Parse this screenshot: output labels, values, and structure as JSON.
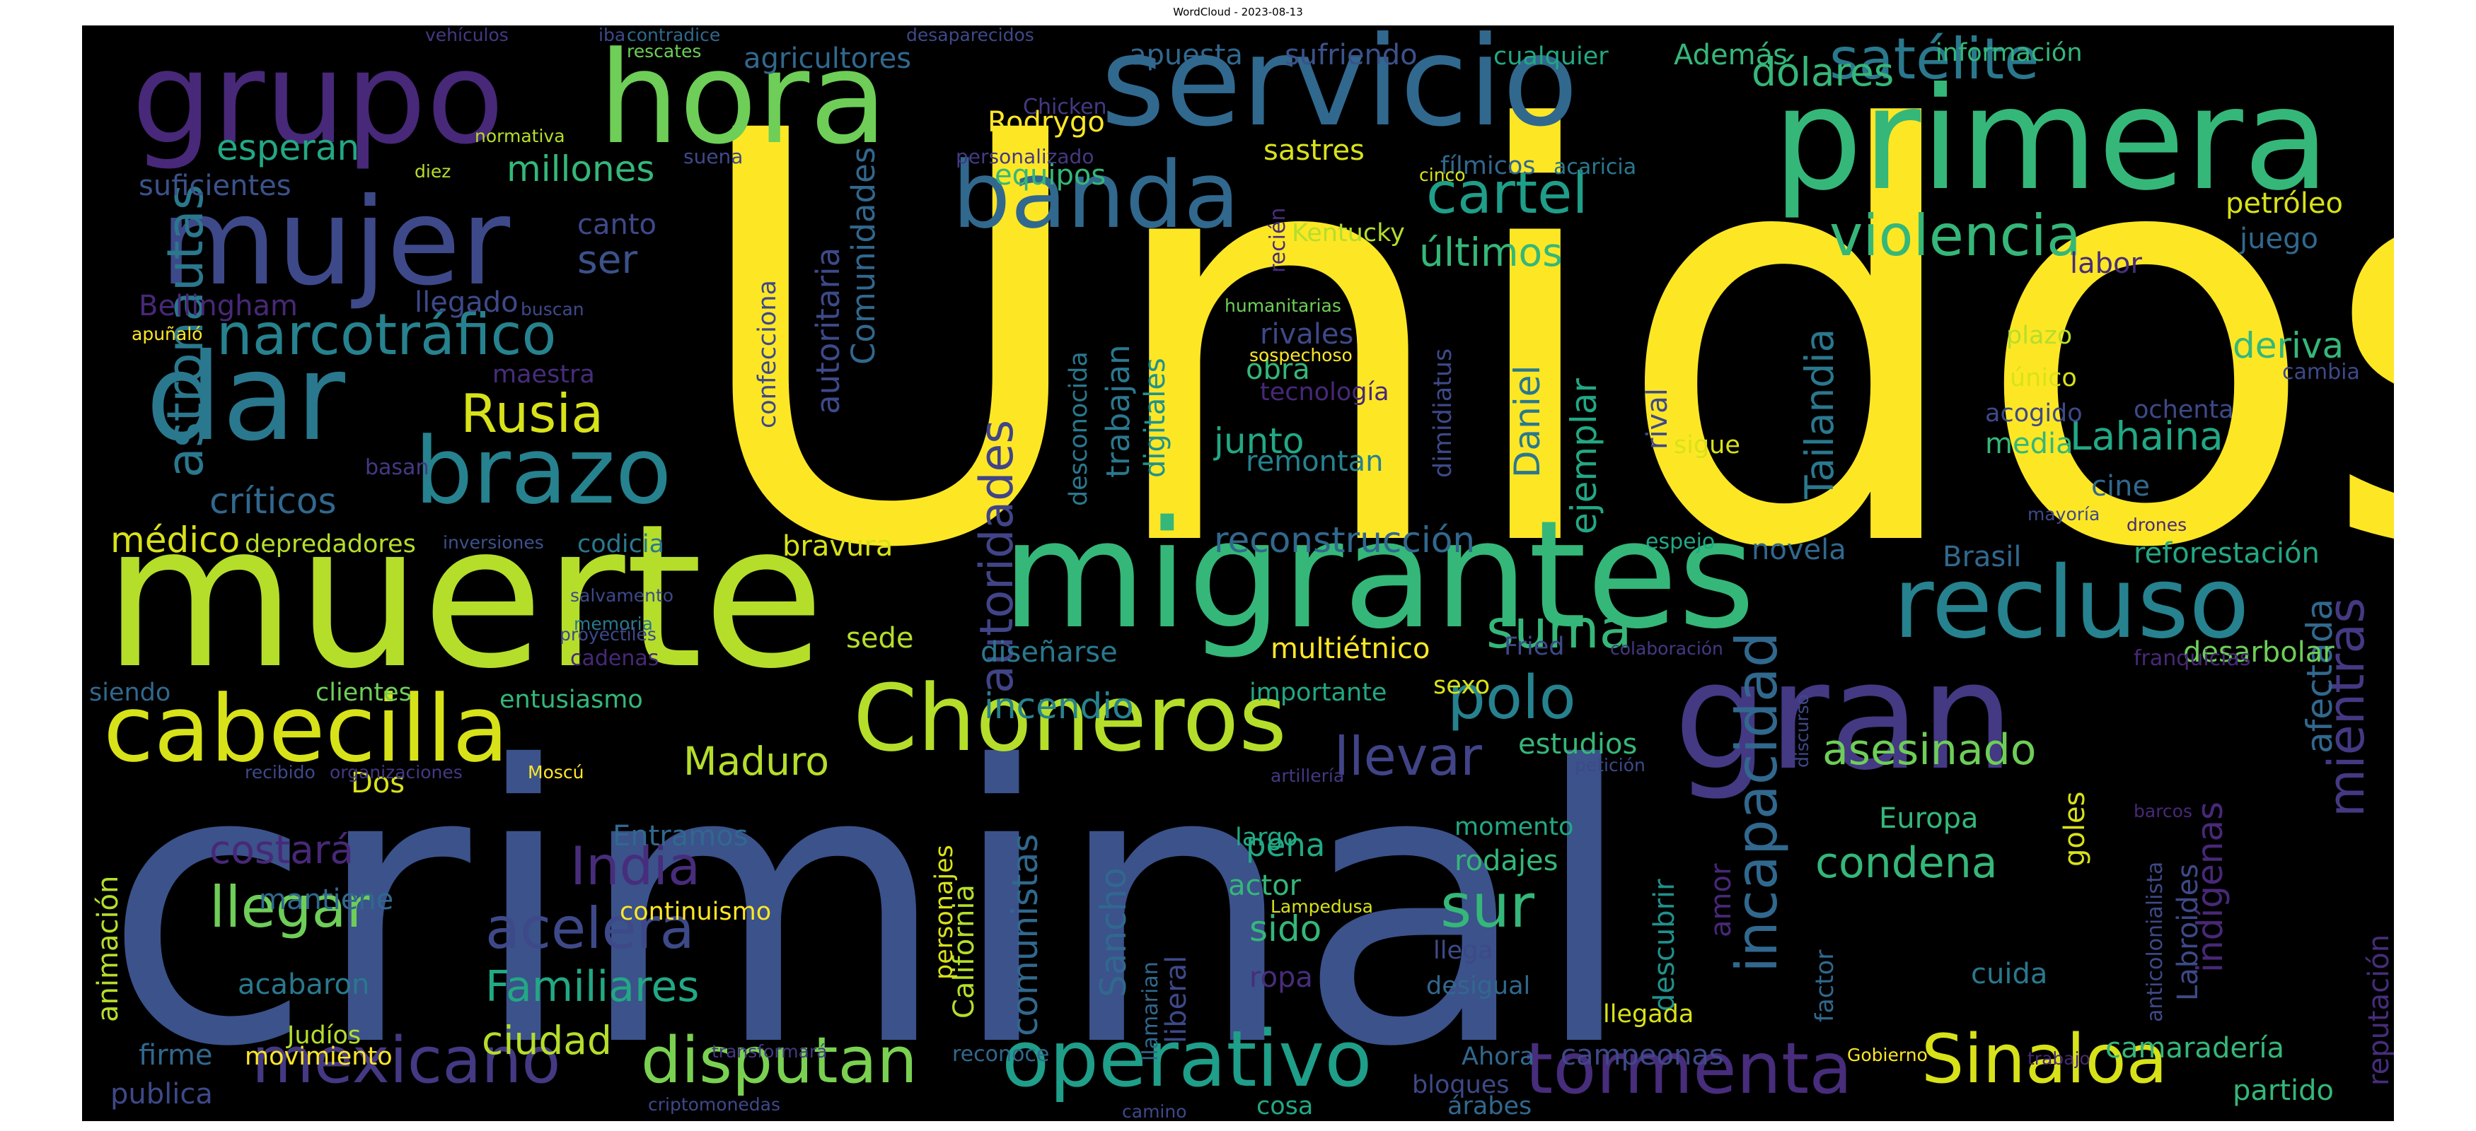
{
  "title": "WordCloud - 2023-08-13",
  "background": "#000000",
  "words": [
    {
      "text": "Unidos",
      "color": "#fde725"
    },
    {
      "text": "criminal",
      "color": "#3b528b"
    },
    {
      "text": "muerte",
      "color": "#b5de2b"
    },
    {
      "text": "migrantes",
      "color": "#35b779"
    },
    {
      "text": "grupo",
      "color": "#482878"
    },
    {
      "text": "hora",
      "color": "#6ece58"
    },
    {
      "text": "servicio",
      "color": "#31688e"
    },
    {
      "text": "primera",
      "color": "#35b779"
    },
    {
      "text": "gran",
      "color": "#443983"
    },
    {
      "text": "mujer",
      "color": "#3e4989"
    },
    {
      "text": "dar",
      "color": "#2a788e"
    },
    {
      "text": "banda",
      "color": "#31688e"
    },
    {
      "text": "brazo",
      "color": "#26828e"
    },
    {
      "text": "cabecilla",
      "color": "#d8e219"
    },
    {
      "text": "Choneros",
      "color": "#b5de2b"
    },
    {
      "text": "recluso",
      "color": "#26828e"
    },
    {
      "text": "tormenta",
      "color": "#472d7b"
    },
    {
      "text": "Sinaloa",
      "color": "#d8e219"
    },
    {
      "text": "operativo",
      "color": "#1f9e89"
    },
    {
      "text": "disputan",
      "color": "#7ad151"
    },
    {
      "text": "mexicano",
      "color": "#443983"
    },
    {
      "text": "violencia",
      "color": "#35b779"
    },
    {
      "text": "satélite",
      "color": "#2a788e"
    },
    {
      "text": "cartel",
      "color": "#1f9e89"
    },
    {
      "text": "narcotráfico",
      "color": "#26828e"
    },
    {
      "text": "astronautas",
      "color": "#2a788e"
    },
    {
      "text": "Rusia",
      "color": "#d8e219"
    },
    {
      "text": "India",
      "color": "#472d7b"
    },
    {
      "text": "acelera",
      "color": "#3e4989"
    },
    {
      "text": "llegar",
      "color": "#6ece58"
    },
    {
      "text": "polo",
      "color": "#26828e"
    },
    {
      "text": "sur",
      "color": "#35b779"
    },
    {
      "text": "llevar",
      "color": "#414487"
    },
    {
      "text": "incapacidad",
      "color": "#31688e"
    },
    {
      "text": "mientras",
      "color": "#443983"
    },
    {
      "text": "autoridades",
      "color": "#414487"
    },
    {
      "text": "suma",
      "color": "#35b779"
    },
    {
      "text": "asesinado",
      "color": "#6ece58"
    },
    {
      "text": "condena",
      "color": "#35b779"
    },
    {
      "text": "Familiares",
      "color": "#22a884"
    },
    {
      "text": "ciudad",
      "color": "#b5de2b"
    },
    {
      "text": "Maduro",
      "color": "#b5de2b"
    },
    {
      "text": "costará",
      "color": "#482878"
    },
    {
      "text": "dólares",
      "color": "#35b779"
    },
    {
      "text": "Lahaina",
      "color": "#22a884"
    },
    {
      "text": "Tailandia",
      "color": "#2a788e"
    },
    {
      "text": "últimos",
      "color": "#35b779"
    },
    {
      "text": "esperan",
      "color": "#22a884"
    },
    {
      "text": "millones",
      "color": "#35b779"
    },
    {
      "text": "ser",
      "color": "#3b528b"
    },
    {
      "text": "críticos",
      "color": "#31688e"
    },
    {
      "text": "médico",
      "color": "#d8e219"
    },
    {
      "text": "reconstrucción",
      "color": "#31688e"
    },
    {
      "text": "junto",
      "color": "#22a884"
    },
    {
      "text": "Daniel",
      "color": "#2a788e"
    },
    {
      "text": "ejemplar",
      "color": "#22a884"
    },
    {
      "text": "incendio",
      "color": "#26828e"
    },
    {
      "text": "comunistas",
      "color": "#31688e"
    },
    {
      "text": "Sancho",
      "color": "#31688e"
    },
    {
      "text": "deriva",
      "color": "#35b779"
    },
    {
      "text": "indígenas",
      "color": "#482878"
    },
    {
      "text": "afectada",
      "color": "#31688e"
    },
    {
      "text": "reforestación",
      "color": "#22a884"
    },
    {
      "text": "desarbolar",
      "color": "#6ece58"
    },
    {
      "text": "Brasil",
      "color": "#31688e"
    },
    {
      "text": "estudios",
      "color": "#35b779"
    },
    {
      "text": "novela",
      "color": "#31688e"
    },
    {
      "text": "pena",
      "color": "#22a884"
    },
    {
      "text": "sido",
      "color": "#35b779"
    },
    {
      "text": "rodajes",
      "color": "#35b779"
    },
    {
      "text": "descubrir",
      "color": "#21918c"
    },
    {
      "text": "Europa",
      "color": "#35b779"
    },
    {
      "text": "campeonas",
      "color": "#3e4989"
    },
    {
      "text": "cuida",
      "color": "#2a788e"
    },
    {
      "text": "camaradería",
      "color": "#35b779"
    },
    {
      "text": "partido",
      "color": "#35b779"
    },
    {
      "text": "goles",
      "color": "#d8e219"
    },
    {
      "text": "Labroides",
      "color": "#3e4989"
    },
    {
      "text": "reputación",
      "color": "#472d7b"
    },
    {
      "text": "autoritaria",
      "color": "#3e4989"
    },
    {
      "text": "Comunidades",
      "color": "#31688e"
    },
    {
      "text": "trabajan",
      "color": "#2a788e"
    },
    {
      "text": "digitales",
      "color": "#21918c"
    },
    {
      "text": "desconocida",
      "color": "#2a788e"
    },
    {
      "text": "confecciona",
      "color": "#3e4989"
    },
    {
      "text": "Rodrygo",
      "color": "#fde725"
    },
    {
      "text": "equipos",
      "color": "#35b779"
    },
    {
      "text": "sastres",
      "color": "#d8e219"
    },
    {
      "text": "apuesta",
      "color": "#31688e"
    },
    {
      "text": "sufriendo",
      "color": "#3b528b"
    },
    {
      "text": "cualquier",
      "color": "#22a884"
    },
    {
      "text": "Además",
      "color": "#35b779"
    },
    {
      "text": "información",
      "color": "#35b779"
    },
    {
      "text": "agricultores",
      "color": "#31688e"
    },
    {
      "text": "Bellingham",
      "color": "#482878"
    },
    {
      "text": "llegado",
      "color": "#3e4989"
    },
    {
      "text": "canto",
      "color": "#3e4989"
    },
    {
      "text": "suficientes",
      "color": "#3b528b"
    },
    {
      "text": "maestra",
      "color": "#472d7b"
    },
    {
      "text": "depredadores",
      "color": "#b5de2b"
    },
    {
      "text": "codicia",
      "color": "#2a788e"
    },
    {
      "text": "bravura",
      "color": "#d8e219"
    },
    {
      "text": "multiétnico",
      "color": "#fde725"
    },
    {
      "text": "sede",
      "color": "#b5de2b"
    },
    {
      "text": "diseñarse",
      "color": "#2a788e"
    },
    {
      "text": "importante",
      "color": "#22a884"
    },
    {
      "text": "sexo",
      "color": "#d8e219"
    },
    {
      "text": "clientes",
      "color": "#6ece58"
    },
    {
      "text": "entusiasmo",
      "color": "#35b779"
    },
    {
      "text": "siendo",
      "color": "#31688e"
    },
    {
      "text": "Dos",
      "color": "#d8e219"
    },
    {
      "text": "Entramos",
      "color": "#31688e"
    },
    {
      "text": "mantiene",
      "color": "#31688e"
    },
    {
      "text": "animación",
      "color": "#b5de2b"
    },
    {
      "text": "acabaron",
      "color": "#2a788e"
    },
    {
      "text": "Judíos",
      "color": "#b5de2b"
    },
    {
      "text": "firme",
      "color": "#31688e"
    },
    {
      "text": "movimiento",
      "color": "#fde725"
    },
    {
      "text": "publica",
      "color": "#3e4989"
    },
    {
      "text": "California",
      "color": "#b5de2b"
    },
    {
      "text": "personajes",
      "color": "#d8e219"
    },
    {
      "text": "continuismo",
      "color": "#fde725"
    },
    {
      "text": "Fried",
      "color": "#3e4989"
    },
    {
      "text": "remontan",
      "color": "#26828e"
    },
    {
      "text": "obra",
      "color": "#35b779"
    },
    {
      "text": "rivales",
      "color": "#3e4989"
    },
    {
      "text": "tecnología",
      "color": "#482878"
    },
    {
      "text": "dimidiatus",
      "color": "#3e4989"
    },
    {
      "text": "rival",
      "color": "#3e4989"
    },
    {
      "text": "sigue",
      "color": "#d8e219"
    },
    {
      "text": "espejo",
      "color": "#22a884"
    },
    {
      "text": "media",
      "color": "#35b779"
    },
    {
      "text": "cine",
      "color": "#31688e"
    },
    {
      "text": "plazo",
      "color": "#b5de2b"
    },
    {
      "text": "único",
      "color": "#d8e219"
    },
    {
      "text": "acogido",
      "color": "#3e4989"
    },
    {
      "text": "ochenta",
      "color": "#3e4989"
    },
    {
      "text": "cambia",
      "color": "#3e4989"
    },
    {
      "text": "petróleo",
      "color": "#d8e219"
    },
    {
      "text": "juego",
      "color": "#31688e"
    },
    {
      "text": "labor",
      "color": "#472d7b"
    },
    {
      "text": "fílmicos",
      "color": "#31688e"
    },
    {
      "text": "acaricia",
      "color": "#2a788e"
    },
    {
      "text": "Kentucky",
      "color": "#b5de2b"
    },
    {
      "text": "recién",
      "color": "#472d7b"
    },
    {
      "text": "humanitarias",
      "color": "#6ece58"
    },
    {
      "text": "sospechoso",
      "color": "#fde725"
    },
    {
      "text": "actor",
      "color": "#35b779"
    },
    {
      "text": "largo",
      "color": "#22a884"
    },
    {
      "text": "momento",
      "color": "#22a884"
    },
    {
      "text": "liberal",
      "color": "#3e4989"
    },
    {
      "text": "llamarian",
      "color": "#31688e"
    },
    {
      "text": "ropa",
      "color": "#472d7b"
    },
    {
      "text": "desigual",
      "color": "#31688e"
    },
    {
      "text": "llega",
      "color": "#3e4989"
    },
    {
      "text": "amor",
      "color": "#482878"
    },
    {
      "text": "llegada",
      "color": "#d8e219"
    },
    {
      "text": "factor",
      "color": "#31688e"
    },
    {
      "text": "anticolonialista",
      "color": "#3e4989"
    },
    {
      "text": "Ahora",
      "color": "#31688e"
    },
    {
      "text": "bloques",
      "color": "#3e4989"
    },
    {
      "text": "árabes",
      "color": "#31688e"
    },
    {
      "text": "cosa",
      "color": "#22a884"
    },
    {
      "text": "reconoce",
      "color": "#31688e"
    },
    {
      "text": "transformará",
      "color": "#443983"
    },
    {
      "text": "criptomonedas",
      "color": "#3e4989"
    },
    {
      "text": "camino",
      "color": "#3e4989"
    },
    {
      "text": "Gobierno",
      "color": "#fde725"
    },
    {
      "text": "trabajo",
      "color": "#482878"
    },
    {
      "text": "Lampedusa",
      "color": "#d8e219"
    },
    {
      "text": "vehículos",
      "color": "#443983"
    },
    {
      "text": "iba",
      "color": "#3e4989"
    },
    {
      "text": "contradice",
      "color": "#31688e"
    },
    {
      "text": "rescates",
      "color": "#6ece58"
    },
    {
      "text": "desaparecidos",
      "color": "#3e4989"
    },
    {
      "text": "Chicken",
      "color": "#443983"
    },
    {
      "text": "personalizado",
      "color": "#443983"
    },
    {
      "text": "normativa",
      "color": "#b5de2b"
    },
    {
      "text": "diez",
      "color": "#b5de2b"
    },
    {
      "text": "suena",
      "color": "#3e4989"
    },
    {
      "text": "cinco",
      "color": "#d8e219"
    },
    {
      "text": "apuñaló",
      "color": "#fde725"
    },
    {
      "text": "buscan",
      "color": "#3e4989"
    },
    {
      "text": "basan",
      "color": "#443983"
    },
    {
      "text": "inversiones",
      "color": "#3b528b"
    },
    {
      "text": "salvamento",
      "color": "#3e4989"
    },
    {
      "text": "memoria",
      "color": "#2a788e"
    },
    {
      "text": "proyectiles",
      "color": "#3e4989"
    },
    {
      "text": "cadenas",
      "color": "#482878"
    },
    {
      "text": "recibido",
      "color": "#3e4989"
    },
    {
      "text": "organizaciones",
      "color": "#443983"
    },
    {
      "text": "Moscú",
      "color": "#fde725"
    },
    {
      "text": "artillería",
      "color": "#443983"
    },
    {
      "text": "petición",
      "color": "#3e4989"
    },
    {
      "text": "discurso",
      "color": "#3e4989"
    },
    {
      "text": "barcos",
      "color": "#482878"
    },
    {
      "text": "colaboración",
      "color": "#443983"
    },
    {
      "text": "franquicias",
      "color": "#482878"
    },
    {
      "text": "mayoría",
      "color": "#3e4989"
    },
    {
      "text": "drones",
      "color": "#482878"
    }
  ]
}
